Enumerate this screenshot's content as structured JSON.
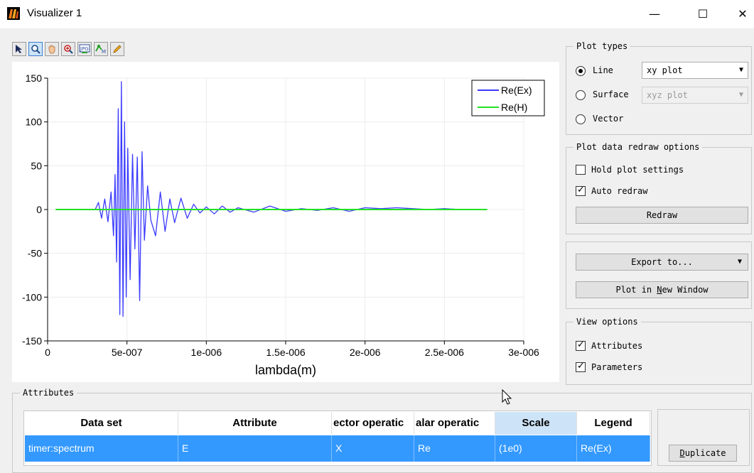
{
  "window": {
    "title": "Visualizer 1",
    "minimize": "—",
    "maximize": "☐",
    "close": "✕"
  },
  "toolbar": {
    "tools": [
      {
        "name": "select-arrow-icon"
      },
      {
        "name": "zoom-icon",
        "active": true
      },
      {
        "name": "pan-hand-icon"
      },
      {
        "name": "zoom-region-icon"
      },
      {
        "name": "export-jpg-icon",
        "label": "JPG"
      },
      {
        "name": "marker-icon",
        "label": "M"
      },
      {
        "name": "pencil-icon"
      }
    ]
  },
  "colors": {
    "series1": "#3a3aff",
    "series2": "#22e022",
    "selection": "#3399ff",
    "scale_header": "#cde3f7"
  },
  "chart_data": {
    "type": "line",
    "xlabel": "lambda(m)",
    "ylabel": "",
    "xlim": [
      0,
      3e-06
    ],
    "ylim": [
      -150,
      150
    ],
    "x_ticks": [
      "0",
      "5e-007",
      "1e-006",
      "1.5e-006",
      "2e-006",
      "2.5e-006",
      "3e-006"
    ],
    "y_ticks": [
      "150",
      "100",
      "50",
      "0",
      "-50",
      "-100",
      "-150"
    ],
    "grid": true,
    "legend_position": "top-right",
    "series": [
      {
        "name": "Re(Ex)",
        "color": "#3a3aff",
        "x": [
          3e-07,
          3.2e-07,
          3.4e-07,
          3.6e-07,
          3.8e-07,
          4e-07,
          4.15e-07,
          4.25e-07,
          4.35e-07,
          4.45e-07,
          4.55e-07,
          4.65e-07,
          4.75e-07,
          4.85e-07,
          4.95e-07,
          5.05e-07,
          5.2e-07,
          5.35e-07,
          5.5e-07,
          5.65e-07,
          5.8e-07,
          5.95e-07,
          6.1e-07,
          6.3e-07,
          6.5e-07,
          6.8e-07,
          7.1e-07,
          7.4e-07,
          7.7e-07,
          8e-07,
          8.4e-07,
          8.8e-07,
          9.2e-07,
          9.6e-07,
          1e-06,
          1.05e-06,
          1.1e-06,
          1.15e-06,
          1.2e-06,
          1.3e-06,
          1.4e-06,
          1.5e-06,
          1.6e-06,
          1.7e-06,
          1.8e-06,
          1.9e-06,
          2e-06,
          2.1e-06,
          2.2e-06,
          2.3e-06,
          2.4e-06,
          2.5e-06,
          2.6e-06,
          2.7e-06,
          2.77e-06
        ],
        "y": [
          0,
          8,
          -10,
          12,
          -14,
          20,
          -30,
          40,
          -60,
          115,
          -120,
          146,
          -122,
          100,
          -100,
          70,
          -80,
          63,
          -45,
          60,
          -104,
          66,
          -35,
          27,
          -12,
          -30,
          20,
          -25,
          12,
          -15,
          13,
          -10,
          6,
          -4,
          3,
          -5,
          4,
          -3,
          2,
          -3,
          4,
          -2,
          1,
          -1,
          2,
          -2,
          2,
          1,
          2,
          1,
          0,
          1,
          0,
          0,
          0
        ]
      },
      {
        "name": "Re(H)",
        "color": "#22e022",
        "x": [
          5e-08,
          2.77e-06
        ],
        "y": [
          0,
          0
        ]
      }
    ]
  },
  "plot_types": {
    "legend": "Plot types",
    "line_label": "Line",
    "line_combo": "xy plot",
    "surface_label": "Surface",
    "surface_combo": "xyz plot",
    "vector_label": "Vector",
    "selected": "Line"
  },
  "redraw_options": {
    "legend": "Plot data redraw options",
    "hold_label": "Hold plot settings",
    "hold_checked": false,
    "auto_label": "Auto redraw",
    "auto_checked": true,
    "redraw_button": "Redraw"
  },
  "export": {
    "export_button": "Export to...",
    "new_window_button_prefix": "Plot in ",
    "new_window_button_mnemonic": "N",
    "new_window_button_suffix": "ew Window"
  },
  "view_options": {
    "legend": "View options",
    "attributes_label": "Attributes",
    "attributes_checked": true,
    "parameters_label": "Parameters",
    "parameters_checked": true
  },
  "attributes_section": {
    "legend": "Attributes",
    "columns": [
      "Data set",
      "Attribute",
      "ector operatic",
      "alar operatic",
      "Scale",
      "Legend"
    ],
    "rows": [
      [
        "timer:spectrum",
        "E",
        "X",
        "Re",
        "(1e0)",
        "Re(Ex)"
      ]
    ],
    "duplicate_mnemonic": "D",
    "duplicate_rest": "uplicate"
  }
}
